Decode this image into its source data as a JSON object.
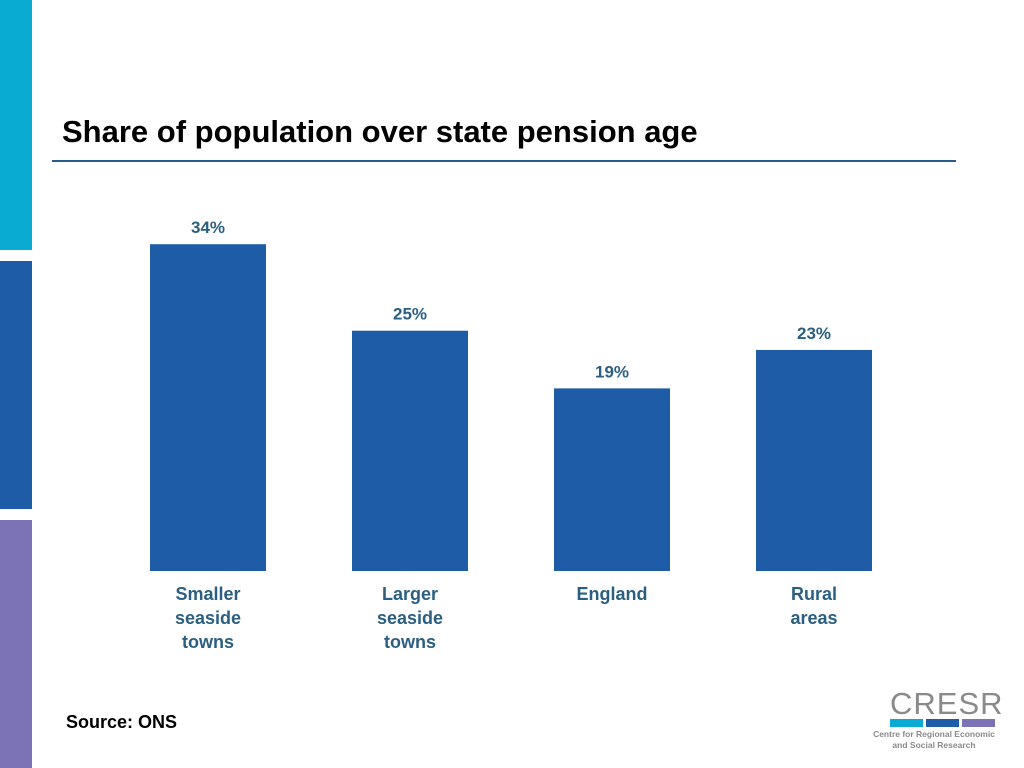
{
  "title": "Share of population over state pension age",
  "source": "Source: ONS",
  "colors": {
    "bar": "#1f5ca8",
    "value_label": "#2a5f82",
    "category_label": "#2a5f82",
    "strip_top": "#0aabd3",
    "strip_middle": "#1f5ca8",
    "strip_bottom": "#7b73b6"
  },
  "logo": {
    "word": "CRESR",
    "subtitle_line1": "Centre for Regional Economic",
    "subtitle_line2": "and Social Research",
    "bar_colors": [
      "#0aabd3",
      "#1f5ca8",
      "#7b73b6"
    ]
  },
  "chart_data": {
    "type": "bar",
    "categories": [
      [
        "Smaller",
        "seaside",
        "towns"
      ],
      [
        "Larger",
        "seaside",
        "towns"
      ],
      [
        "England"
      ],
      [
        "Rural",
        "areas"
      ]
    ],
    "values": [
      34,
      25,
      19,
      23
    ],
    "value_labels": [
      "34%",
      "25%",
      "19%",
      "23%"
    ],
    "unit": "%",
    "ylim": [
      0,
      36
    ],
    "grid": false,
    "legend": "none",
    "xlabel": "",
    "ylabel": ""
  }
}
